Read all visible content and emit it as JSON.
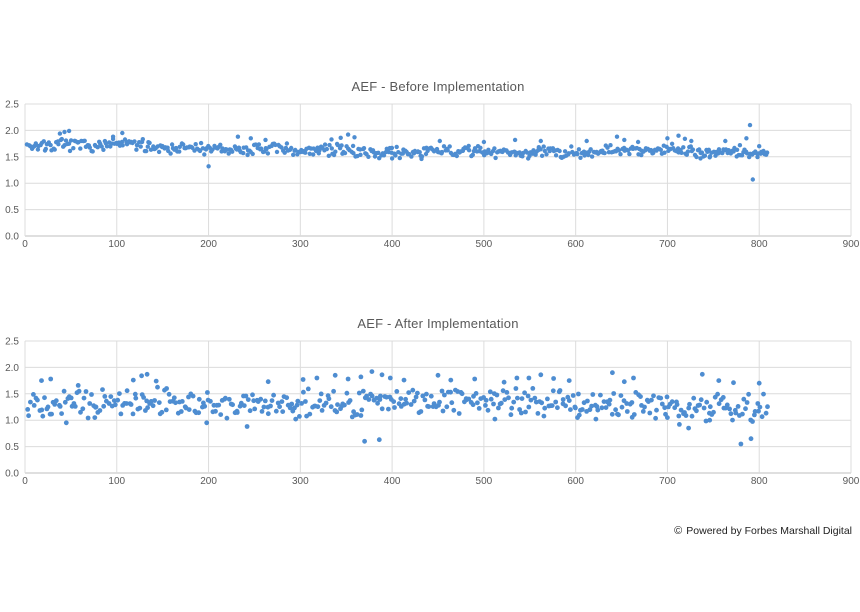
{
  "page": {
    "background": "#ffffff"
  },
  "footer": {
    "icon": "©",
    "text": "Powered by Forbes Marshall Digital"
  },
  "chart_data": [
    {
      "type": "scatter",
      "title": "AEF - Before Implementation",
      "xlabel": "",
      "ylabel": "",
      "xlim": [
        0,
        900
      ],
      "ylim": [
        0,
        2.5
      ],
      "x_ticks": [
        0,
        100,
        200,
        300,
        400,
        500,
        600,
        700,
        800,
        900
      ],
      "y_ticks": [
        0,
        0.5,
        1,
        1.5,
        2,
        2.5
      ],
      "grid": true,
      "legend": "none",
      "marker_color": "#4e8dd1",
      "marker_radius": 2.2,
      "grid_color": "#dcdcdc",
      "axis_color": "#bfbfbf",
      "tick_color": "#595959",
      "title_color": "#595959",
      "data_x_range": [
        0,
        812
      ],
      "generator": {
        "seed": 7,
        "n": 520,
        "x_min": 2,
        "x_max": 810,
        "noise_amp": 0.13,
        "baseline": [
          [
            0,
            1.73
          ],
          [
            50,
            1.71
          ],
          [
            90,
            1.72
          ],
          [
            110,
            1.75
          ],
          [
            140,
            1.7
          ],
          [
            180,
            1.66
          ],
          [
            210,
            1.63
          ],
          [
            250,
            1.64
          ],
          [
            290,
            1.63
          ],
          [
            330,
            1.63
          ],
          [
            370,
            1.6
          ],
          [
            410,
            1.57
          ],
          [
            450,
            1.6
          ],
          [
            490,
            1.61
          ],
          [
            530,
            1.58
          ],
          [
            570,
            1.59
          ],
          [
            610,
            1.59
          ],
          [
            650,
            1.62
          ],
          [
            690,
            1.64
          ],
          [
            715,
            1.67
          ],
          [
            735,
            1.58
          ],
          [
            760,
            1.59
          ],
          [
            785,
            1.57
          ],
          [
            812,
            1.52
          ]
        ]
      },
      "outliers": [
        [
          38,
          1.94
        ],
        [
          43,
          1.97
        ],
        [
          48,
          1.99
        ],
        [
          96,
          1.88
        ],
        [
          106,
          1.95
        ],
        [
          200,
          1.32
        ],
        [
          232,
          1.88
        ],
        [
          246,
          1.85
        ],
        [
          262,
          1.82
        ],
        [
          334,
          1.83
        ],
        [
          344,
          1.86
        ],
        [
          352,
          1.92
        ],
        [
          359,
          1.87
        ],
        [
          400,
          1.47
        ],
        [
          432,
          1.46
        ],
        [
          452,
          1.8
        ],
        [
          500,
          1.78
        ],
        [
          534,
          1.82
        ],
        [
          562,
          1.8
        ],
        [
          612,
          1.8
        ],
        [
          645,
          1.88
        ],
        [
          653,
          1.82
        ],
        [
          668,
          1.78
        ],
        [
          700,
          1.85
        ],
        [
          712,
          1.9
        ],
        [
          719,
          1.84
        ],
        [
          726,
          1.8
        ],
        [
          736,
          1.47
        ],
        [
          746,
          1.49
        ],
        [
          763,
          1.8
        ],
        [
          779,
          1.72
        ],
        [
          786,
          1.85
        ],
        [
          790,
          2.1
        ],
        [
          793,
          1.07
        ],
        [
          800,
          1.7
        ],
        [
          806,
          1.55
        ]
      ]
    },
    {
      "type": "scatter",
      "title": "AEF - After Implementation",
      "xlabel": "",
      "ylabel": "",
      "xlim": [
        0,
        900
      ],
      "ylim": [
        0,
        2.5
      ],
      "x_ticks": [
        0,
        100,
        200,
        300,
        400,
        500,
        600,
        700,
        800,
        900
      ],
      "y_ticks": [
        0,
        0.5,
        1,
        1.5,
        2,
        2.5
      ],
      "grid": true,
      "legend": "none",
      "marker_color": "#4e8dd1",
      "marker_radius": 2.4,
      "grid_color": "#dcdcdc",
      "axis_color": "#bfbfbf",
      "tick_color": "#595959",
      "title_color": "#595959",
      "data_x_range": [
        0,
        812
      ],
      "generator": {
        "seed": 13,
        "n": 430,
        "x_min": 2,
        "x_max": 810,
        "noise_amp": 0.3,
        "baseline": [
          [
            0,
            1.38
          ],
          [
            40,
            1.31
          ],
          [
            80,
            1.3
          ],
          [
            120,
            1.37
          ],
          [
            155,
            1.34
          ],
          [
            200,
            1.28
          ],
          [
            240,
            1.27
          ],
          [
            280,
            1.3
          ],
          [
            320,
            1.34
          ],
          [
            360,
            1.32
          ],
          [
            400,
            1.34
          ],
          [
            440,
            1.37
          ],
          [
            480,
            1.4
          ],
          [
            520,
            1.35
          ],
          [
            560,
            1.36
          ],
          [
            600,
            1.32
          ],
          [
            640,
            1.3
          ],
          [
            680,
            1.28
          ],
          [
            715,
            1.24
          ],
          [
            750,
            1.28
          ],
          [
            780,
            1.24
          ],
          [
            812,
            1.27
          ]
        ]
      },
      "outliers": [
        [
          18,
          1.75
        ],
        [
          28,
          1.78
        ],
        [
          58,
          1.66
        ],
        [
          118,
          1.76
        ],
        [
          127,
          1.84
        ],
        [
          133,
          1.87
        ],
        [
          143,
          1.74
        ],
        [
          265,
          1.73
        ],
        [
          303,
          1.77
        ],
        [
          318,
          1.8
        ],
        [
          338,
          1.85
        ],
        [
          352,
          1.78
        ],
        [
          366,
          1.82
        ],
        [
          378,
          1.92
        ],
        [
          389,
          1.86
        ],
        [
          398,
          1.8
        ],
        [
          413,
          1.76
        ],
        [
          450,
          1.85
        ],
        [
          464,
          1.76
        ],
        [
          490,
          1.78
        ],
        [
          522,
          1.72
        ],
        [
          536,
          1.8
        ],
        [
          549,
          1.8
        ],
        [
          562,
          1.86
        ],
        [
          576,
          1.79
        ],
        [
          593,
          1.75
        ],
        [
          640,
          1.9
        ],
        [
          653,
          1.73
        ],
        [
          663,
          1.8
        ],
        [
          738,
          1.87
        ],
        [
          756,
          1.75
        ],
        [
          772,
          1.71
        ],
        [
          800,
          1.7
        ],
        [
          45,
          0.95
        ],
        [
          76,
          1.05
        ],
        [
          198,
          0.95
        ],
        [
          242,
          0.88
        ],
        [
          295,
          1.02
        ],
        [
          370,
          0.6
        ],
        [
          386,
          0.63
        ],
        [
          512,
          1.02
        ],
        [
          602,
          1.05
        ],
        [
          622,
          1.02
        ],
        [
          700,
          1.05
        ],
        [
          713,
          0.92
        ],
        [
          723,
          0.85
        ],
        [
          746,
          1.0
        ],
        [
          780,
          0.55
        ],
        [
          791,
          0.65
        ]
      ]
    }
  ]
}
